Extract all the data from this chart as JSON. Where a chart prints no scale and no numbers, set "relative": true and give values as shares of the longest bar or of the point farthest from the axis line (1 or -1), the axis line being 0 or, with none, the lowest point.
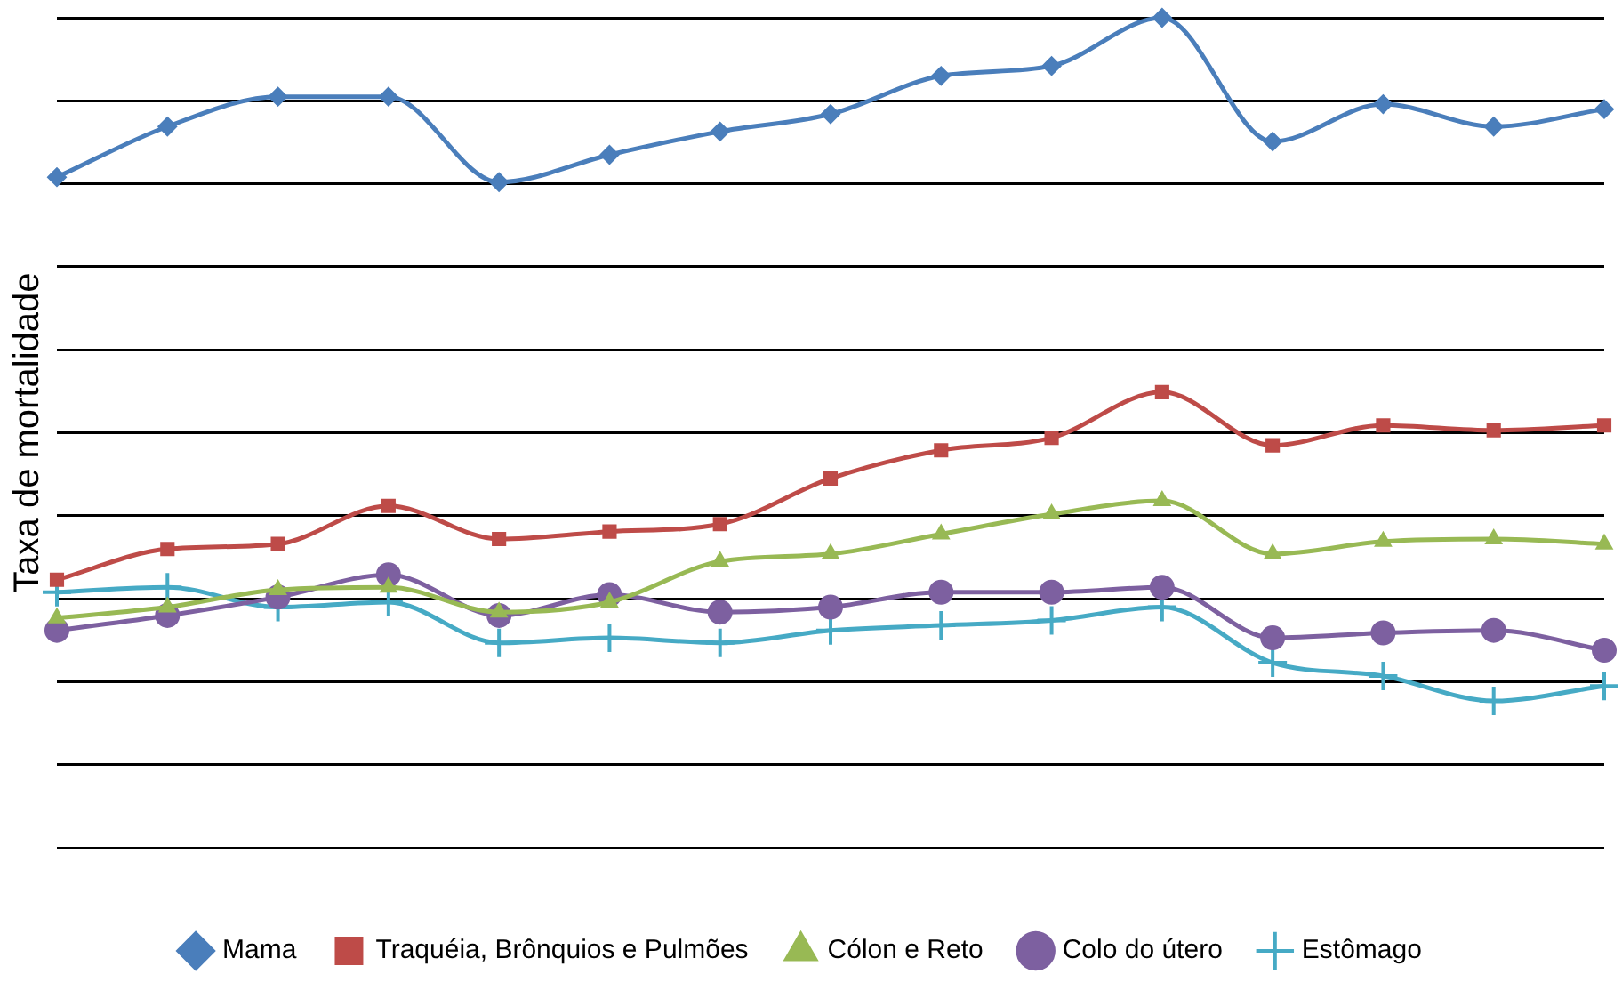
{
  "chart_data": {
    "type": "line",
    "ylabel": "Taxa de mortalidade",
    "relative": true,
    "grid": "y",
    "legend": "bottom",
    "categories": [
      null,
      null,
      null,
      null,
      null,
      null,
      null,
      null,
      null,
      null,
      null,
      null,
      null,
      null,
      null
    ],
    "series": [
      {
        "name": "Mama",
        "color": "#4a7ebb",
        "marker": "diamond",
        "values": [
          0.808,
          0.869,
          0.905,
          0.905,
          0.802,
          0.835,
          0.863,
          0.884,
          0.93,
          0.942,
          1,
          0.851,
          0.896,
          0.869,
          0.89
        ]
      },
      {
        "name": "Traquéia, Brônquios e Pulmões",
        "color": "#be4b48",
        "marker": "square",
        "values": [
          0.323,
          0.36,
          0.366,
          0.412,
          0.372,
          0.381,
          0.39,
          0.445,
          0.479,
          0.494,
          0.549,
          0.485,
          0.509,
          0.503,
          0.509
        ]
      },
      {
        "name": "Cólon e Reto",
        "color": "#98b954",
        "marker": "triangle",
        "values": [
          0.277,
          0.29,
          0.311,
          0.314,
          0.284,
          0.296,
          0.345,
          0.354,
          0.378,
          0.402,
          0.418,
          0.354,
          0.369,
          0.372,
          0.366
        ]
      },
      {
        "name": "Colo do útero",
        "color": "#7d60a0",
        "marker": "circle",
        "values": [
          0.262,
          0.28,
          0.302,
          0.329,
          0.28,
          0.305,
          0.284,
          0.29,
          0.308,
          0.308,
          0.314,
          0.253,
          0.259,
          0.262,
          0.238
        ]
      },
      {
        "name": "Estômago",
        "color": "#46aac5",
        "marker": "cross",
        "values": [
          0.308,
          0.314,
          0.29,
          0.296,
          0.247,
          0.253,
          0.247,
          0.262,
          0.268,
          0.274,
          0.29,
          0.223,
          0.207,
          0.177,
          0.195
        ]
      }
    ]
  }
}
